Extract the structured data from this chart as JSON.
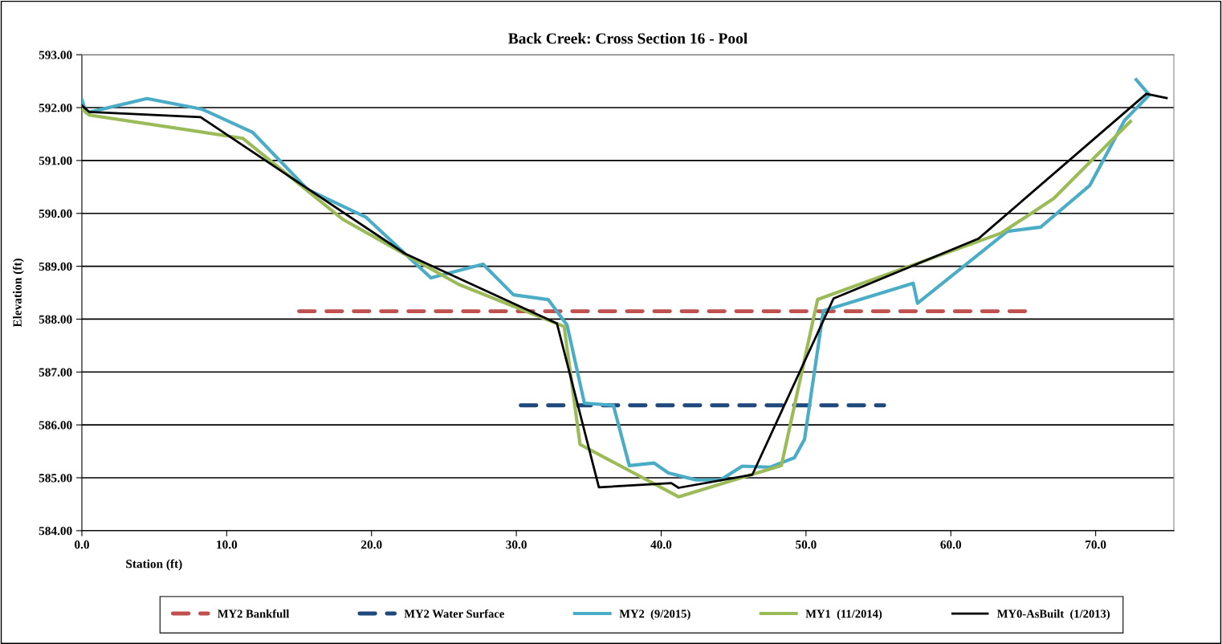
{
  "chart_data": {
    "type": "line",
    "title": "Back Creek: Cross Section 16 - Pool",
    "xlabel": "Station (ft)",
    "ylabel": "Elevation (ft)",
    "xlim": [
      0,
      75.4
    ],
    "ylim": [
      584,
      593
    ],
    "xticks": [
      {
        "value": 0,
        "label": "0.0"
      },
      {
        "value": 10,
        "label": "10.0"
      },
      {
        "value": 20,
        "label": "20.0"
      },
      {
        "value": 30,
        "label": "30.0"
      },
      {
        "value": 40,
        "label": "40.0"
      },
      {
        "value": 50,
        "label": "50.0"
      },
      {
        "value": 60,
        "label": "60.0"
      },
      {
        "value": 70,
        "label": "70.0"
      }
    ],
    "yticks": [
      {
        "value": 584,
        "label": "584.00"
      },
      {
        "value": 585,
        "label": "585.00"
      },
      {
        "value": 586,
        "label": "586.00"
      },
      {
        "value": 587,
        "label": "587.00"
      },
      {
        "value": 588,
        "label": "588.00"
      },
      {
        "value": 589,
        "label": "589.00"
      },
      {
        "value": 590,
        "label": "590.00"
      },
      {
        "value": 591,
        "label": "591.00"
      },
      {
        "value": 592,
        "label": "592.00"
      },
      {
        "value": 593,
        "label": "593.00"
      }
    ],
    "grid": "y",
    "legend": "bottom",
    "marker": "none",
    "series": [
      {
        "name": "MY2 Bankfull",
        "color": "#c0504d",
        "line_style": "dashed",
        "x": [
          15.0,
          65.5
        ],
        "values": [
          588.15,
          588.15
        ]
      },
      {
        "name": "MY2 Water Surface",
        "color": "#1f497d",
        "line_style": "dashed",
        "x": [
          30.3,
          55.4
        ],
        "values": [
          586.37,
          586.37
        ]
      },
      {
        "name": "MY2  (9/2015)",
        "color": "#4bacc6",
        "line_style": "solid",
        "x": [
          0,
          0.3,
          4.5,
          8.3,
          11.8,
          15.6,
          19.6,
          24.1,
          27.7,
          29.8,
          32.2,
          33.5,
          34.7,
          36.7,
          37.8,
          39.5,
          40.5,
          42.4,
          44.1,
          45.6,
          47.5,
          49.2,
          49.9,
          51.2,
          57.4,
          57.7,
          63.9,
          66.2,
          69.6,
          72.0,
          73.7,
          72.8
        ],
        "values": [
          592.15,
          591.9,
          592.17,
          591.97,
          591.53,
          590.45,
          589.93,
          588.78,
          589.04,
          588.46,
          588.37,
          587.89,
          586.41,
          586.37,
          585.23,
          585.28,
          585.09,
          584.96,
          584.96,
          585.22,
          585.2,
          585.38,
          585.73,
          588.16,
          588.68,
          588.3,
          589.66,
          589.74,
          590.53,
          591.76,
          592.24,
          592.53
        ]
      },
      {
        "name": "MY1  (11/2014)",
        "color": "#9bbb59",
        "line_style": "solid",
        "x": [
          0,
          0.5,
          11.1,
          18.0,
          26.0,
          33.3,
          34.4,
          41.2,
          48.3,
          50.8,
          63.5,
          67.1,
          72.4
        ],
        "values": [
          591.98,
          591.86,
          591.42,
          589.89,
          588.66,
          587.86,
          585.63,
          584.64,
          585.23,
          588.37,
          589.63,
          590.28,
          591.74
        ]
      },
      {
        "name": "MY0-AsBuilt  (1/2013)",
        "color": "#000000",
        "line_style": "solid",
        "x": [
          0,
          0.5,
          8.2,
          22.3,
          32.8,
          35.7,
          40.7,
          41.2,
          46.3,
          51.9,
          61.9,
          73.5,
          74.9
        ],
        "values": [
          592.04,
          591.92,
          591.82,
          589.24,
          587.92,
          584.82,
          584.9,
          584.81,
          585.06,
          588.39,
          589.52,
          592.26,
          592.18
        ]
      }
    ]
  }
}
